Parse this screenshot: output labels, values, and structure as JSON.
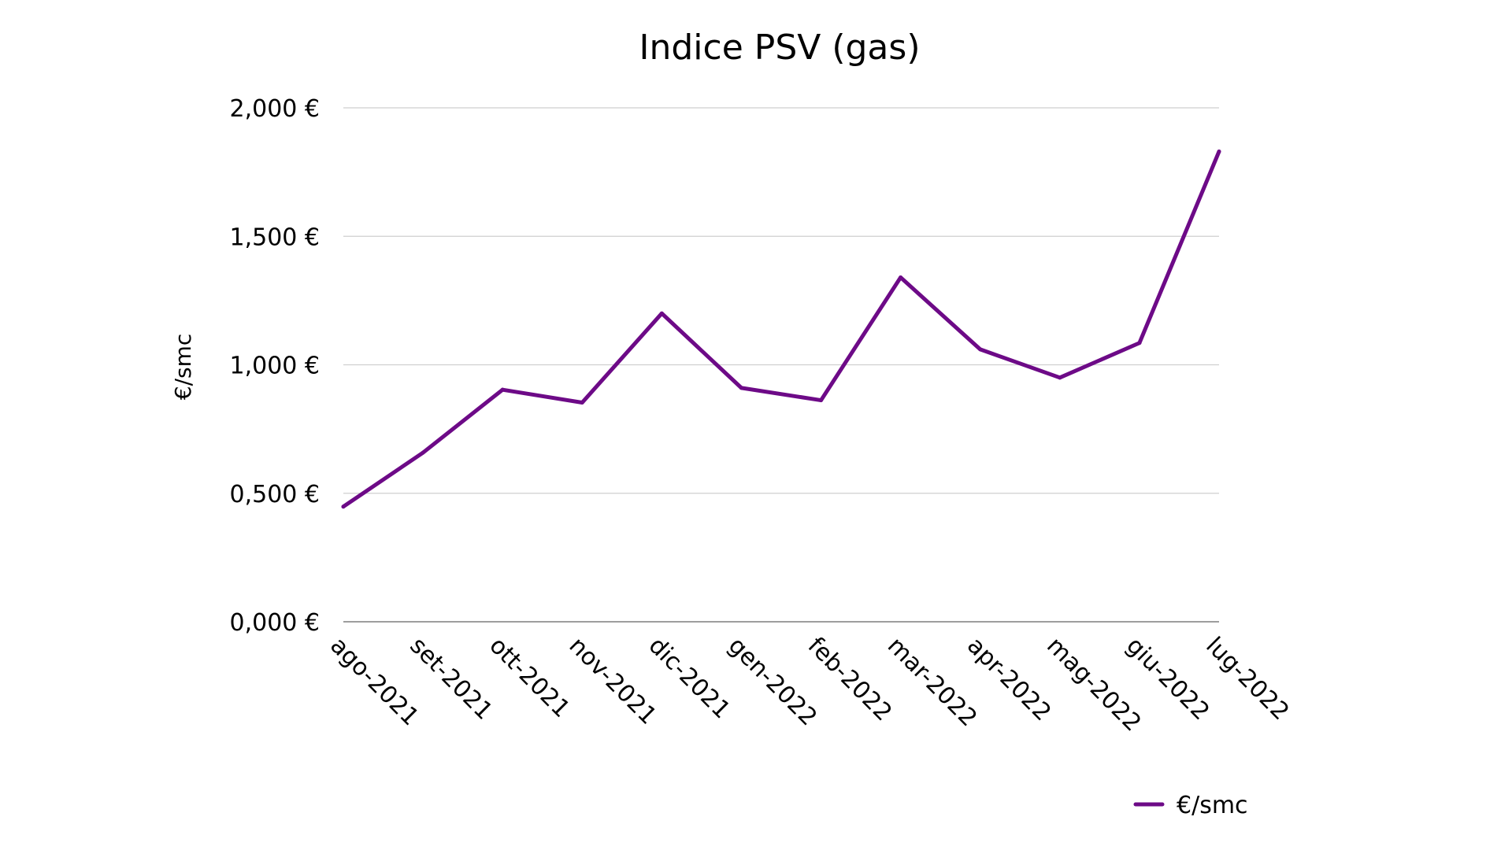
{
  "chart_data": {
    "type": "line",
    "title": "Indice PSV (gas)",
    "ylabel": "€/smc",
    "xlabel": "",
    "categories": [
      "ago-2021",
      "set-2021",
      "ott-2021",
      "nov-2021",
      "dic-2021",
      "gen-2022",
      "feb-2022",
      "mar-2022",
      "apr-2022",
      "mag-2022",
      "giu-2022",
      "lug-2022"
    ],
    "series": [
      {
        "name": "€/smc",
        "values": [
          0.448,
          0.658,
          0.903,
          0.853,
          1.2,
          0.91,
          0.862,
          1.34,
          1.06,
          0.95,
          1.085,
          1.83
        ]
      }
    ],
    "ylim": [
      0,
      2
    ],
    "yticks": [
      0,
      0.5,
      1,
      1.5,
      2
    ],
    "ytick_labels": [
      "0,000 €",
      "0,500 €",
      "1,000 €",
      "1,500 €",
      "2,000 €"
    ],
    "grid": true,
    "legend_position": "bottom-right",
    "colors": {
      "series": "#6d0a87"
    }
  }
}
